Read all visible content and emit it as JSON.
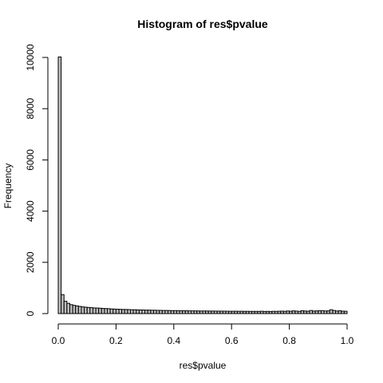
{
  "chart_data": {
    "type": "bar",
    "title": "Histogram of res$pvalue",
    "xlabel": "res$pvalue",
    "ylabel": "Frequency",
    "xlim": [
      0,
      1
    ],
    "ylim": [
      0,
      10000
    ],
    "bin_width": 0.01,
    "x_ticks": [
      0,
      0.2,
      0.4,
      0.6,
      0.8,
      1
    ],
    "x_tick_labels": [
      "0.0",
      "0.2",
      "0.4",
      "0.6",
      "0.8",
      "1.0"
    ],
    "y_ticks": [
      0,
      2000,
      4000,
      6000,
      8000,
      10000
    ],
    "y_tick_labels": [
      "0",
      "2000",
      "4000",
      "6000",
      "8000",
      "10000"
    ],
    "grid": false,
    "bar_color": "#bebebe",
    "edge_color": "#000000",
    "values": [
      10020,
      740,
      480,
      400,
      350,
      320,
      300,
      280,
      260,
      250,
      240,
      230,
      220,
      215,
      210,
      200,
      195,
      190,
      180,
      175,
      170,
      165,
      160,
      160,
      155,
      150,
      150,
      145,
      140,
      140,
      135,
      135,
      130,
      130,
      125,
      125,
      120,
      120,
      118,
      115,
      115,
      112,
      110,
      110,
      108,
      105,
      105,
      104,
      102,
      100,
      100,
      100,
      98,
      98,
      96,
      95,
      95,
      94,
      92,
      90,
      90,
      92,
      88,
      90,
      86,
      88,
      85,
      86,
      84,
      85,
      90,
      82,
      86,
      80,
      88,
      85,
      90,
      95,
      88,
      100,
      92,
      105,
      95,
      88,
      110,
      100,
      92,
      120,
      98,
      105,
      110,
      115,
      100,
      105,
      150,
      120,
      100,
      110,
      95,
      90
    ]
  }
}
